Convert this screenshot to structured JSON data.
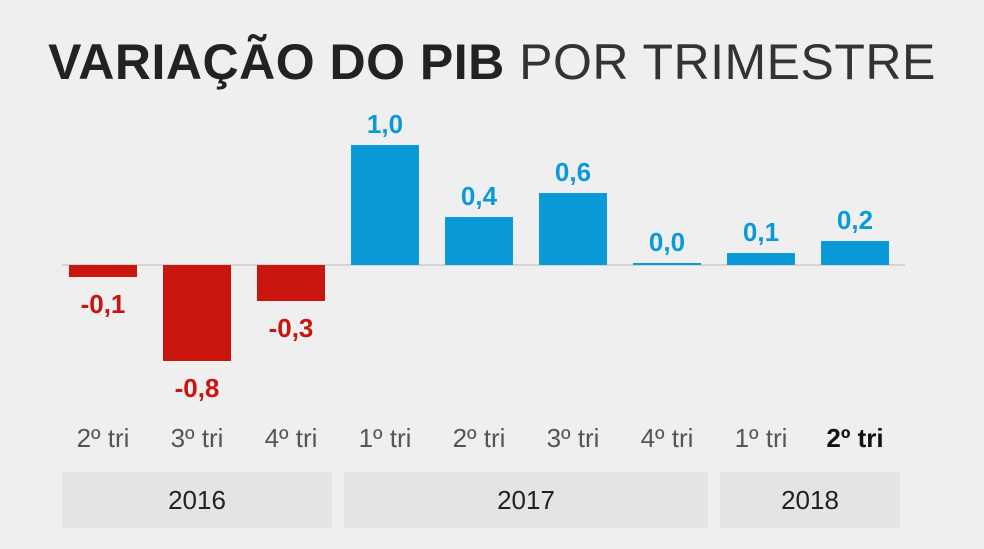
{
  "title": {
    "bold": "VARIAÇÃO DO PIB",
    "light": "POR TRIMESTRE"
  },
  "colors": {
    "negative": "#c8150d",
    "positive": "#0a9ad7",
    "axis": "#cccccc",
    "background": "#efefef",
    "year_band": "#e4e4e4"
  },
  "chart_data": {
    "type": "bar",
    "title": "VARIAÇÃO DO PIB POR TRIMESTRE",
    "categories": [
      "2º tri",
      "3º tri",
      "4º tri",
      "1º tri",
      "2º tri",
      "3º tri",
      "4º tri",
      "1º tri",
      "2º tri"
    ],
    "values": [
      -0.1,
      -0.8,
      -0.3,
      1.0,
      0.4,
      0.6,
      0.0,
      0.1,
      0.2
    ],
    "value_labels": [
      "-0,1",
      "-0,8",
      "-0,3",
      "1,0",
      "0,4",
      "0,6",
      "0,0",
      "0,1",
      "0,2"
    ],
    "groups": [
      {
        "label": "2016",
        "count": 3
      },
      {
        "label": "2017",
        "count": 4
      },
      {
        "label": "2018",
        "count": 2
      }
    ],
    "highlight_index": 8,
    "ylim": [
      -0.8,
      1.0
    ],
    "grid": false,
    "legend": "none"
  }
}
